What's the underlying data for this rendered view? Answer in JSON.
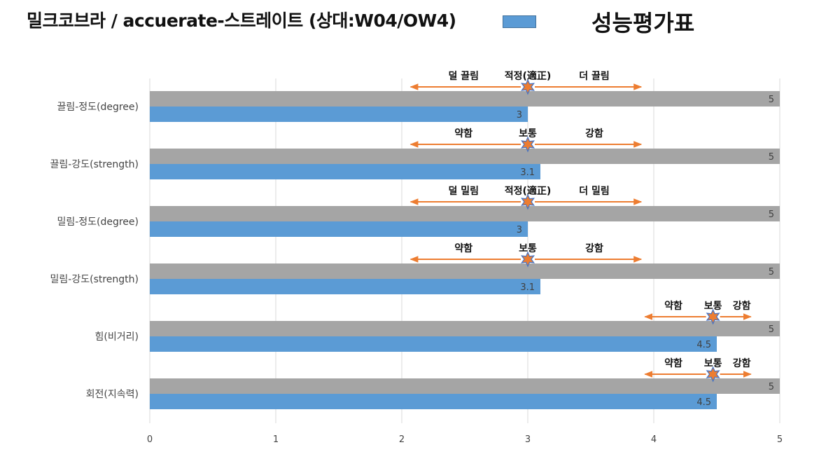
{
  "header": {
    "title": "밀크코브라 / accuerate-스트레이트 (상대:W04/OW4)",
    "legend_label": "성능평가표"
  },
  "colors": {
    "series_max": "#a5a5a5",
    "series_score": "#5b9bd5",
    "arrow": "#ed7d31",
    "star": "#ed7d31",
    "star_stroke": "#4472c4",
    "grid": "#d9d9d9"
  },
  "chart_data": {
    "type": "bar",
    "orientation": "horizontal",
    "categories": [
      "끌림-정도(degree)",
      "끌림-강도(strength)",
      "밀림-정도(degree)",
      "밀림-강도(strength)",
      "힘(비거리)",
      "회전(지속력)"
    ],
    "series": [
      {
        "values": [
          5,
          5,
          5,
          5,
          5,
          5
        ]
      },
      {
        "name": "성능평가표",
        "values": [
          3,
          3.1,
          3,
          3.1,
          4.5,
          4.5
        ]
      }
    ],
    "xlim": [
      0,
      5
    ],
    "xticks": [
      "0",
      "1",
      "2",
      "3",
      "4",
      "5"
    ],
    "grid": true,
    "legend": "top",
    "annotations": [
      {
        "left": "덜 끌림",
        "center": "적정(適正)",
        "right": "더 끌림",
        "marker": 3,
        "from": 2.07,
        "to": 3.9
      },
      {
        "left": "약함",
        "center": "보통",
        "right": "강함",
        "marker": 3,
        "from": 2.07,
        "to": 3.9
      },
      {
        "left": "덜 밀림",
        "center": "적정(適正)",
        "right": "더 밀림",
        "marker": 3,
        "from": 2.07,
        "to": 3.9
      },
      {
        "left": "약함",
        "center": "보통",
        "right": "강함",
        "marker": 3,
        "from": 2.07,
        "to": 3.9
      },
      {
        "left": "약함",
        "center": "보통",
        "right": "강함",
        "marker": 4.47,
        "from": 3.93,
        "to": 4.77
      },
      {
        "left": "약함",
        "center": "보통",
        "right": "강함",
        "marker": 4.47,
        "from": 3.93,
        "to": 4.77
      }
    ]
  }
}
